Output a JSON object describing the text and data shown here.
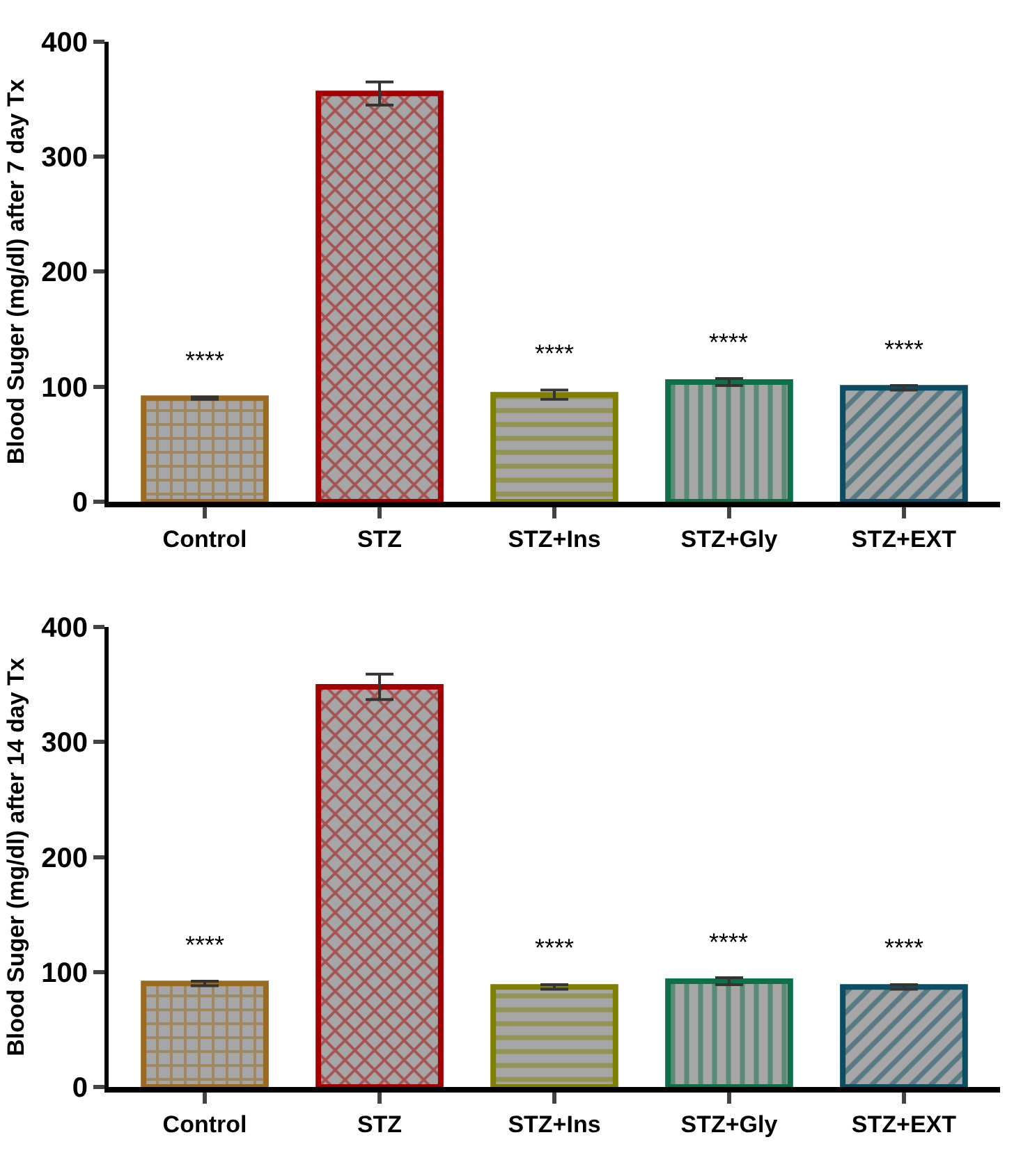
{
  "chart_data": [
    {
      "type": "bar",
      "ylabel": "Blood Suger (mg/dl) after 7 day Tx",
      "categories": [
        "Control",
        "STZ",
        "STZ+Ins",
        "STZ+Gly",
        "STZ+EXT"
      ],
      "values": [
        90,
        355,
        93,
        104,
        99
      ],
      "errors": [
        1,
        10,
        4,
        3,
        2
      ],
      "value_labels": [
        "****",
        null,
        "****",
        "****",
        "****"
      ],
      "colors": [
        "#9a6a1f",
        "#a30000",
        "#7f7f00",
        "#0d7048",
        "#0b4e63"
      ],
      "ylim": [
        0,
        400
      ],
      "yticks": [
        0,
        100,
        200,
        300,
        400
      ]
    },
    {
      "type": "bar",
      "ylabel": "Blood Suger (mg/dl) after 14 day Tx",
      "categories": [
        "Control",
        "STZ",
        "STZ+Ins",
        "STZ+Gly",
        "STZ+EXT"
      ],
      "values": [
        90,
        348,
        87,
        92,
        87
      ],
      "errors": [
        2,
        11,
        2,
        3,
        2
      ],
      "value_labels": [
        "****",
        null,
        "****",
        "****",
        "****"
      ],
      "colors": [
        "#9a6a1f",
        "#a30000",
        "#7f7f00",
        "#0d7048",
        "#0b4e63"
      ],
      "ylim": [
        0,
        400
      ],
      "yticks": [
        0,
        100,
        200,
        300,
        400
      ]
    }
  ]
}
